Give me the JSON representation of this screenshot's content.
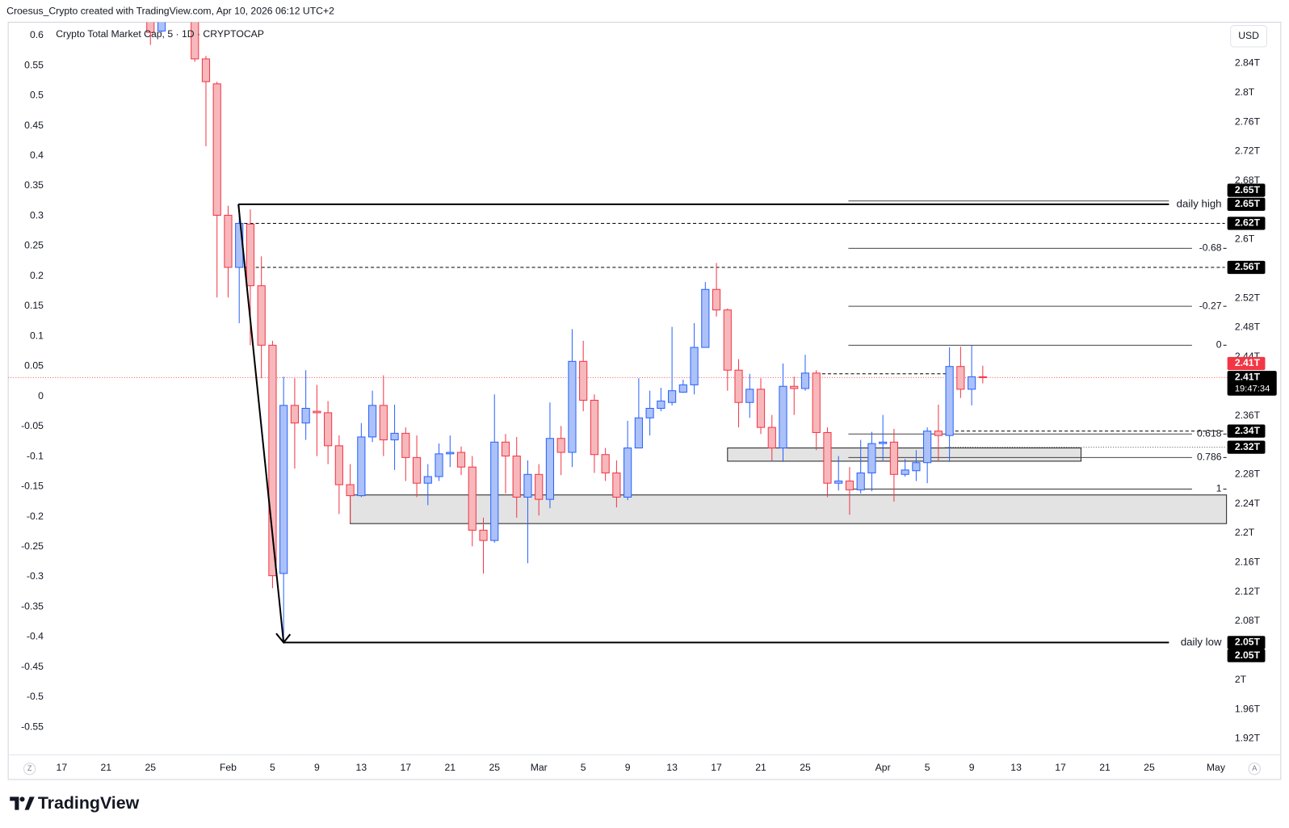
{
  "header": "Croesus_Crypto created with TradingView.com, Apr 10, 2026 06:12 UTC+2",
  "logo": "TradingView",
  "currency_button": "USD",
  "scale_buttons": [
    "Z",
    "A"
  ],
  "chart_data": {
    "type": "candlestick",
    "title": "Crypto Total Market Cap, 5 · 1D · CRYPTOCAP",
    "up_color": "#2962ff",
    "up_fill": "#abc1f7",
    "down_color": "#f23645",
    "down_fill": "#f7b8bc",
    "x": [
      "2026-01-25",
      "2026-01-26",
      "2026-01-29",
      "2026-01-30",
      "2026-01-31",
      "2026-02-01",
      "2026-02-02",
      "2026-02-03",
      "2026-02-04",
      "2026-02-05",
      "2026-02-06",
      "2026-02-07",
      "2026-02-08",
      "2026-02-09",
      "2026-02-10",
      "2026-02-11",
      "2026-02-12",
      "2026-02-13",
      "2026-02-14",
      "2026-02-15",
      "2026-02-16",
      "2026-02-17",
      "2026-02-18",
      "2026-02-19",
      "2026-02-20",
      "2026-02-21",
      "2026-02-22",
      "2026-02-23",
      "2026-02-24",
      "2026-02-25",
      "2026-02-26",
      "2026-02-27",
      "2026-02-28",
      "2026-03-01",
      "2026-03-02",
      "2026-03-03",
      "2026-03-04",
      "2026-03-05",
      "2026-03-06",
      "2026-03-07",
      "2026-03-08",
      "2026-03-09",
      "2026-03-10",
      "2026-03-11",
      "2026-03-12",
      "2026-03-13",
      "2026-03-14",
      "2026-03-15",
      "2026-03-16",
      "2026-03-17",
      "2026-03-18",
      "2026-03-19",
      "2026-03-20",
      "2026-03-21",
      "2026-03-22",
      "2026-03-23",
      "2026-03-24",
      "2026-03-25",
      "2026-03-26",
      "2026-03-27",
      "2026-03-28",
      "2026-03-29",
      "2026-03-30",
      "2026-03-31",
      "2026-04-01",
      "2026-04-02",
      "2026-04-03",
      "2026-04-04",
      "2026-04-05",
      "2026-04-06",
      "2026-04-07",
      "2026-04-08",
      "2026-04-09",
      "2026-04-10"
    ],
    "open": [
      2.93,
      2.884,
      2.904,
      2.846,
      2.812,
      2.633,
      2.562,
      2.621,
      2.537,
      2.456,
      2.145,
      2.374,
      2.35,
      2.366,
      2.364,
      2.319,
      2.266,
      2.251,
      2.331,
      2.374,
      2.327,
      2.336,
      2.303,
      2.268,
      2.277,
      2.308,
      2.31,
      2.29,
      2.204,
      2.19,
      2.324,
      2.305,
      2.249,
      2.28,
      2.246,
      2.329,
      2.31,
      2.434,
      2.381,
      2.307,
      2.282,
      2.249,
      2.316,
      2.357,
      2.37,
      2.378,
      2.392,
      2.402,
      2.453,
      2.532,
      2.504,
      2.422,
      2.378,
      2.396,
      2.344,
      2.316,
      2.4,
      2.397,
      2.418,
      2.337,
      2.268,
      2.271,
      2.259,
      2.282,
      2.322,
      2.324,
      2.28,
      2.285,
      2.296,
      2.339,
      2.333,
      2.427,
      2.396,
      2.413
    ],
    "high": [
      2.95,
      2.91,
      2.92,
      2.85,
      2.815,
      2.646,
      2.646,
      2.641,
      2.577,
      2.462,
      2.413,
      2.411,
      2.422,
      2.402,
      2.38,
      2.333,
      2.294,
      2.35,
      2.394,
      2.415,
      2.375,
      2.344,
      2.333,
      2.294,
      2.322,
      2.333,
      2.318,
      2.305,
      2.221,
      2.389,
      2.335,
      2.331,
      2.299,
      2.294,
      2.378,
      2.346,
      2.478,
      2.462,
      2.389,
      2.316,
      2.299,
      2.353,
      2.411,
      2.394,
      2.398,
      2.481,
      2.409,
      2.486,
      2.542,
      2.568,
      2.506,
      2.437,
      2.417,
      2.411,
      2.361,
      2.431,
      2.413,
      2.443,
      2.422,
      2.344,
      2.305,
      2.29,
      2.327,
      2.338,
      2.361,
      2.342,
      2.301,
      2.313,
      2.344,
      2.375,
      2.453,
      2.454,
      2.456,
      2.428
    ],
    "low": [
      2.865,
      2.882,
      2.842,
      2.727,
      2.521,
      2.521,
      2.486,
      2.456,
      2.411,
      2.125,
      2.053,
      2.288,
      2.327,
      2.305,
      2.294,
      2.226,
      2.214,
      2.249,
      2.324,
      2.305,
      2.286,
      2.271,
      2.249,
      2.238,
      2.271,
      2.29,
      2.279,
      2.182,
      2.145,
      2.187,
      2.254,
      2.221,
      2.159,
      2.224,
      2.234,
      2.279,
      2.29,
      2.366,
      2.282,
      2.271,
      2.235,
      2.245,
      2.316,
      2.333,
      2.366,
      2.374,
      2.391,
      2.389,
      2.453,
      2.495,
      2.394,
      2.344,
      2.357,
      2.335,
      2.299,
      2.297,
      2.361,
      2.394,
      2.313,
      2.249,
      2.258,
      2.225,
      2.254,
      2.257,
      2.299,
      2.243,
      2.277,
      2.271,
      2.268,
      2.299,
      2.297,
      2.384,
      2.374,
      2.404
    ],
    "close": [
      2.882,
      2.9,
      2.846,
      2.815,
      2.633,
      2.562,
      2.622,
      2.537,
      2.456,
      2.142,
      2.374,
      2.35,
      2.37,
      2.364,
      2.319,
      2.266,
      2.251,
      2.331,
      2.374,
      2.327,
      2.336,
      2.303,
      2.268,
      2.277,
      2.308,
      2.31,
      2.29,
      2.204,
      2.19,
      2.324,
      2.305,
      2.249,
      2.28,
      2.246,
      2.329,
      2.31,
      2.434,
      2.381,
      2.307,
      2.282,
      2.249,
      2.316,
      2.357,
      2.37,
      2.38,
      2.394,
      2.402,
      2.453,
      2.532,
      2.504,
      2.422,
      2.378,
      2.396,
      2.344,
      2.316,
      2.4,
      2.397,
      2.418,
      2.337,
      2.268,
      2.271,
      2.259,
      2.282,
      2.322,
      2.324,
      2.28,
      2.286,
      2.296,
      2.339,
      2.333,
      2.427,
      2.396,
      2.413,
      2.412
    ],
    "xlim": [
      "2026-01-12",
      "2026-05-02"
    ],
    "xticks": [
      {
        "value": "2026-01-17",
        "label": "17"
      },
      {
        "value": "2026-01-21",
        "label": "21"
      },
      {
        "value": "2026-01-25",
        "label": "25"
      },
      {
        "value": "2026-02-01",
        "label": "Feb"
      },
      {
        "value": "2026-02-05",
        "label": "5"
      },
      {
        "value": "2026-02-09",
        "label": "9"
      },
      {
        "value": "2026-02-13",
        "label": "13"
      },
      {
        "value": "2026-02-17",
        "label": "17"
      },
      {
        "value": "2026-02-21",
        "label": "21"
      },
      {
        "value": "2026-02-25",
        "label": "25"
      },
      {
        "value": "2026-03-01",
        "label": "Mar"
      },
      {
        "value": "2026-03-05",
        "label": "5"
      },
      {
        "value": "2026-03-09",
        "label": "9"
      },
      {
        "value": "2026-03-13",
        "label": "13"
      },
      {
        "value": "2026-03-17",
        "label": "17"
      },
      {
        "value": "2026-03-21",
        "label": "21"
      },
      {
        "value": "2026-03-25",
        "label": "25"
      },
      {
        "value": "2026-04-01",
        "label": "Apr"
      },
      {
        "value": "2026-04-05",
        "label": "5"
      },
      {
        "value": "2026-04-09",
        "label": "9"
      },
      {
        "value": "2026-04-13",
        "label": "13"
      },
      {
        "value": "2026-04-17",
        "label": "17"
      },
      {
        "value": "2026-04-21",
        "label": "21"
      },
      {
        "value": "2026-04-25",
        "label": "25"
      },
      {
        "value": "2026-05-01",
        "label": "May"
      }
    ],
    "ylim": [
      1.898,
      2.896
    ],
    "yticks": [
      {
        "value": 2.84,
        "label": "2.84T"
      },
      {
        "value": 2.8,
        "label": "2.8T"
      },
      {
        "value": 2.76,
        "label": "2.76T"
      },
      {
        "value": 2.72,
        "label": "2.72T"
      },
      {
        "value": 2.68,
        "label": "2.68T"
      },
      {
        "value": 2.6,
        "label": "2.6T"
      },
      {
        "value": 2.52,
        "label": "2.52T"
      },
      {
        "value": 2.48,
        "label": "2.48T"
      },
      {
        "value": 2.44,
        "label": "2.44T"
      },
      {
        "value": 2.36,
        "label": "2.36T"
      },
      {
        "value": 2.28,
        "label": "2.28T"
      },
      {
        "value": 2.24,
        "label": "2.24T"
      },
      {
        "value": 2.2,
        "label": "2.2T"
      },
      {
        "value": 2.16,
        "label": "2.16T"
      },
      {
        "value": 2.12,
        "label": "2.12T"
      },
      {
        "value": 2.08,
        "label": "2.08T"
      },
      {
        "value": 2,
        "label": "2T"
      },
      {
        "value": 1.96,
        "label": "1.96T"
      },
      {
        "value": 1.92,
        "label": "1.92T"
      }
    ],
    "y2lim": [
      -0.596,
      0.622
    ],
    "y2ticks": [
      0.6,
      0.55,
      0.5,
      0.45,
      0.4,
      0.35,
      0.3,
      0.25,
      0.2,
      0.15,
      0.1,
      0.05,
      0,
      -0.05,
      -0.1,
      -0.15,
      -0.2,
      -0.25,
      -0.3,
      -0.35,
      -0.4,
      -0.45,
      -0.5,
      -0.55
    ],
    "daily_high": {
      "label": "daily high",
      "value": 2.648
    },
    "daily_low": {
      "label": "daily low",
      "value": 2.051
    },
    "dashed_levels": [
      2.622,
      2.562,
      2.417,
      2.339,
      2.317
    ],
    "fib_levels": [
      {
        "level": -0.68,
        "price": 2.588
      },
      {
        "level": -0.27,
        "price": 2.509
      },
      {
        "level": 0,
        "price": 2.456
      },
      {
        "level": 0.618,
        "price": 2.335
      },
      {
        "level": 0.786,
        "price": 2.303
      },
      {
        "level": 1,
        "price": 2.26
      }
    ],
    "zones": [
      {
        "top": 2.252,
        "bottom": 2.213
      },
      {
        "top": 2.316,
        "bottom": 2.298
      }
    ],
    "last_price": 2.412,
    "countdown": "19:47:34",
    "price_tags": [
      {
        "value": 2.648,
        "label": "2.65T",
        "color": "#000000"
      },
      {
        "value": 2.648,
        "label": "2.65T",
        "color": "#000000"
      },
      {
        "value": 2.622,
        "label": "2.62T",
        "color": "#000000"
      },
      {
        "value": 2.562,
        "label": "2.56T",
        "color": "#000000"
      },
      {
        "value": 2.412,
        "label": "2.41T",
        "color": "#f23645"
      },
      {
        "value": 2.412,
        "label": "2.41T",
        "color": "#000000"
      },
      {
        "value": 2.339,
        "label": "2.34T",
        "color": "#000000"
      },
      {
        "value": 2.317,
        "label": "2.32T",
        "color": "#000000"
      },
      {
        "value": 2.051,
        "label": "2.05T",
        "color": "#000000"
      },
      {
        "value": 2.051,
        "label": "2.05T",
        "color": "#000000"
      }
    ]
  }
}
